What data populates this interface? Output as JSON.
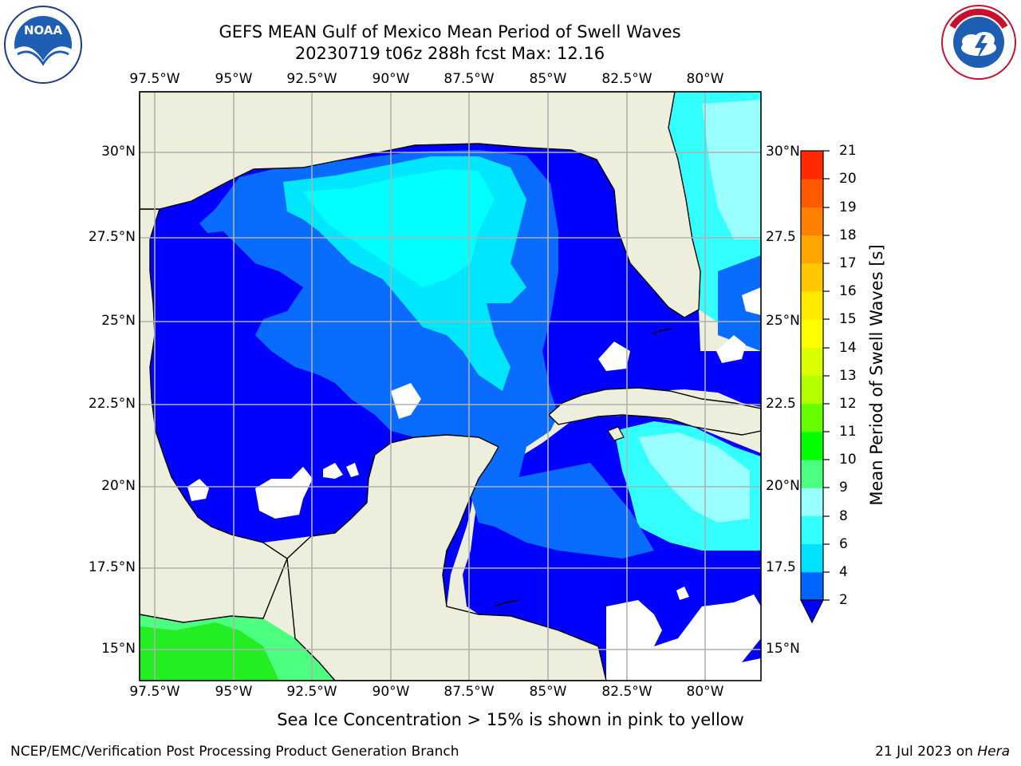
{
  "title": {
    "line1": "GEFS MEAN Gulf of Mexico Mean Period of Swell Waves",
    "line2": "20230719 t06z 288h fcst   Max: 12.16"
  },
  "logos": {
    "left": {
      "name": "NOAA",
      "text": "NOAA",
      "ring_text": "NATIONAL OCEANIC AND ATMOSPHERIC ADMINISTRATION · U.S. DEPARTMENT OF COMMERCE"
    },
    "right": {
      "name": "National Weather Service",
      "ring_text": "NATIONAL WEATHER SERVICE"
    }
  },
  "map": {
    "lon_ticks": [
      "97.5°W",
      "95°W",
      "92.5°W",
      "90°W",
      "87.5°W",
      "85°W",
      "82.5°W",
      "80°W"
    ],
    "lat_ticks_left": [
      "30°N",
      "27.5°N",
      "25°N",
      "22.5°N",
      "20°N",
      "17.5°N",
      "15°N"
    ],
    "lat_ticks_right": [
      "30°N",
      "27.5",
      "25°N",
      "22.5",
      "20°N",
      "17.5",
      "15°N"
    ],
    "lon_range": [
      -98,
      -78.3
    ],
    "lat_range": [
      14.1,
      31.8
    ],
    "land_color": "#eeeedc",
    "grid_color": "#b0b0b0"
  },
  "colorbar": {
    "label": "Mean Period of Swell Waves [s]",
    "ticks": [
      "21",
      "20",
      "19",
      "18",
      "17",
      "16",
      "15",
      "14",
      "13",
      "12",
      "11",
      "10",
      "9",
      "8",
      "6",
      "4",
      "2"
    ],
    "levels": [
      2,
      4,
      6,
      8,
      9,
      10,
      11,
      12,
      13,
      14,
      15,
      16,
      17,
      18,
      19,
      20,
      21
    ],
    "colors": [
      "#0064ff",
      "#00e1ff",
      "#33ffff",
      "#99ffff",
      "#4cff80",
      "#00ff00",
      "#66ff00",
      "#b3ff00",
      "#d9ff00",
      "#ffff00",
      "#ffea00",
      "#ffc800",
      "#ffa500",
      "#ff8000",
      "#ff5a00",
      "#ff2a00"
    ],
    "extend_low_color": "#0000ff"
  },
  "bottom_note": "Sea Ice Concentration > 15% is shown in pink to yellow",
  "footer": {
    "left": "NCEP/EMC/Verification Post Processing Product Generation Branch",
    "right_date": "21 Jul 2023 on ",
    "right_machine": "Hera"
  }
}
